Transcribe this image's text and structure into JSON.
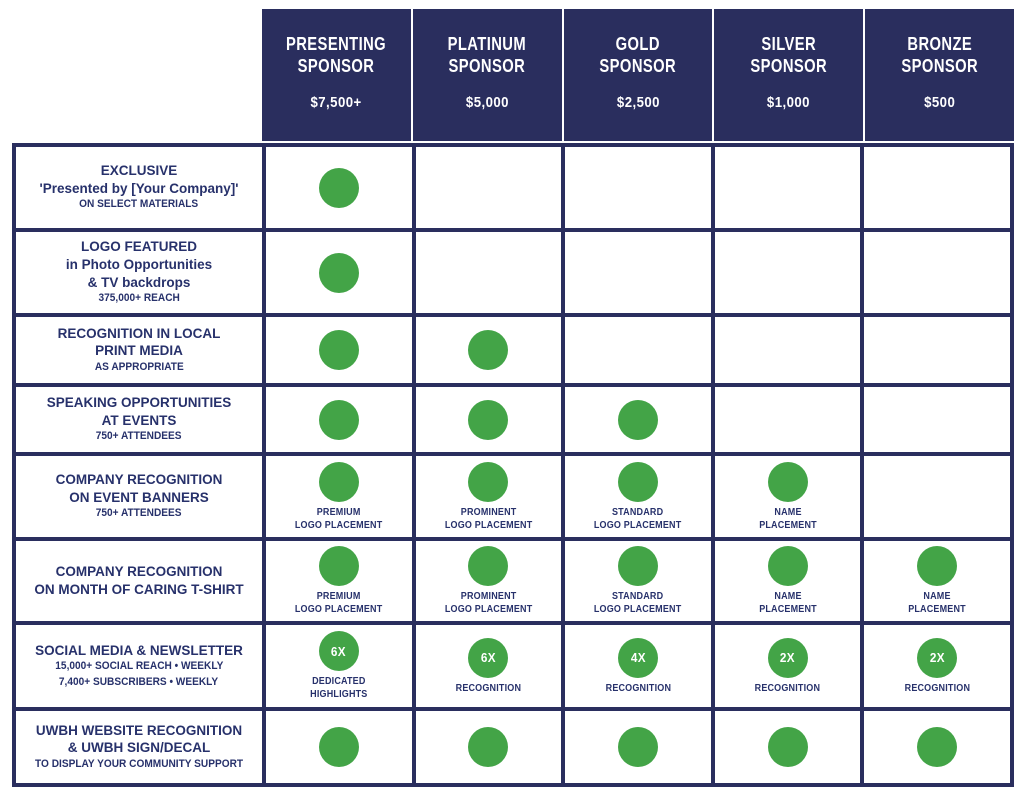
{
  "palette": {
    "navy": "#2a2e5e",
    "text_navy": "#27316b",
    "green": "#43a447",
    "white": "#ffffff"
  },
  "header": {
    "columns": [
      {
        "title": "PRESENTING\nSPONSOR",
        "price": "$7,500+"
      },
      {
        "title": "PLATINUM\nSPONSOR",
        "price": "$5,000"
      },
      {
        "title": "GOLD\nSPONSOR",
        "price": "$2,500"
      },
      {
        "title": "SILVER\nSPONSOR",
        "price": "$1,000"
      },
      {
        "title": "BRONZE\nSPONSOR",
        "price": "$500"
      }
    ]
  },
  "rows": [
    {
      "title_lines": [
        "EXCLUSIVE",
        "'Presented by [Your Company]'"
      ],
      "sub_lines": [
        "ON SELECT MATERIALS"
      ],
      "cells": [
        {
          "dot": true
        },
        {
          "dot": false
        },
        {
          "dot": false
        },
        {
          "dot": false
        },
        {
          "dot": false
        }
      ]
    },
    {
      "title_lines": [
        "LOGO FEATURED",
        "in Photo Opportunities",
        "& TV backdrops"
      ],
      "sub_lines": [
        "375,000+ REACH"
      ],
      "cells": [
        {
          "dot": true
        },
        {
          "dot": false
        },
        {
          "dot": false
        },
        {
          "dot": false
        },
        {
          "dot": false
        }
      ]
    },
    {
      "title_lines": [
        "RECOGNITION IN LOCAL",
        "PRINT MEDIA"
      ],
      "sub_lines": [
        "AS APPROPRIATE"
      ],
      "cells": [
        {
          "dot": true
        },
        {
          "dot": true
        },
        {
          "dot": false
        },
        {
          "dot": false
        },
        {
          "dot": false
        }
      ]
    },
    {
      "title_lines": [
        "SPEAKING OPPORTUNITIES",
        "AT EVENTS"
      ],
      "sub_lines": [
        "750+ ATTENDEES"
      ],
      "cells": [
        {
          "dot": true
        },
        {
          "dot": true
        },
        {
          "dot": true
        },
        {
          "dot": false
        },
        {
          "dot": false
        }
      ]
    },
    {
      "title_lines": [
        "COMPANY RECOGNITION",
        "ON EVENT BANNERS"
      ],
      "sub_lines": [
        "750+ ATTENDEES"
      ],
      "cells": [
        {
          "dot": true,
          "label_lines": [
            "PREMIUM",
            "LOGO PLACEMENT"
          ]
        },
        {
          "dot": true,
          "label_lines": [
            "PROMINENT",
            "LOGO PLACEMENT"
          ]
        },
        {
          "dot": true,
          "label_lines": [
            "STANDARD",
            "LOGO PLACEMENT"
          ]
        },
        {
          "dot": true,
          "label_lines": [
            "NAME",
            "PLACEMENT"
          ]
        },
        {
          "dot": false
        }
      ]
    },
    {
      "title_lines": [
        "COMPANY RECOGNITION",
        "ON MONTH OF CARING T-SHIRT"
      ],
      "sub_lines": [],
      "cells": [
        {
          "dot": true,
          "label_lines": [
            "PREMIUM",
            "LOGO PLACEMENT"
          ]
        },
        {
          "dot": true,
          "label_lines": [
            "PROMINENT",
            "LOGO PLACEMENT"
          ]
        },
        {
          "dot": true,
          "label_lines": [
            "STANDARD",
            "LOGO PLACEMENT"
          ]
        },
        {
          "dot": true,
          "label_lines": [
            "NAME",
            "PLACEMENT"
          ]
        },
        {
          "dot": true,
          "label_lines": [
            "NAME",
            "PLACEMENT"
          ]
        }
      ]
    },
    {
      "title_lines": [
        "SOCIAL MEDIA & NEWSLETTER"
      ],
      "sub_lines": [
        "15,000+ SOCIAL REACH • WEEKLY",
        "7,400+ SUBSCRIBERS • WEEKLY"
      ],
      "cells": [
        {
          "dot": true,
          "dot_text": "6X",
          "label_lines": [
            "DEDICATED",
            "HIGHLIGHTS"
          ]
        },
        {
          "dot": true,
          "dot_text": "6X",
          "label_lines": [
            "RECOGNITION"
          ]
        },
        {
          "dot": true,
          "dot_text": "4X",
          "label_lines": [
            "RECOGNITION"
          ]
        },
        {
          "dot": true,
          "dot_text": "2X",
          "label_lines": [
            "RECOGNITION"
          ]
        },
        {
          "dot": true,
          "dot_text": "2X",
          "label_lines": [
            "RECOGNITION"
          ]
        }
      ]
    },
    {
      "title_lines": [
        "UWBH WEBSITE RECOGNITION",
        "& UWBH SIGN/DECAL"
      ],
      "sub_lines": [
        "TO DISPLAY YOUR COMMUNITY SUPPORT"
      ],
      "cells": [
        {
          "dot": true
        },
        {
          "dot": true
        },
        {
          "dot": true
        },
        {
          "dot": true
        },
        {
          "dot": true
        }
      ]
    }
  ]
}
